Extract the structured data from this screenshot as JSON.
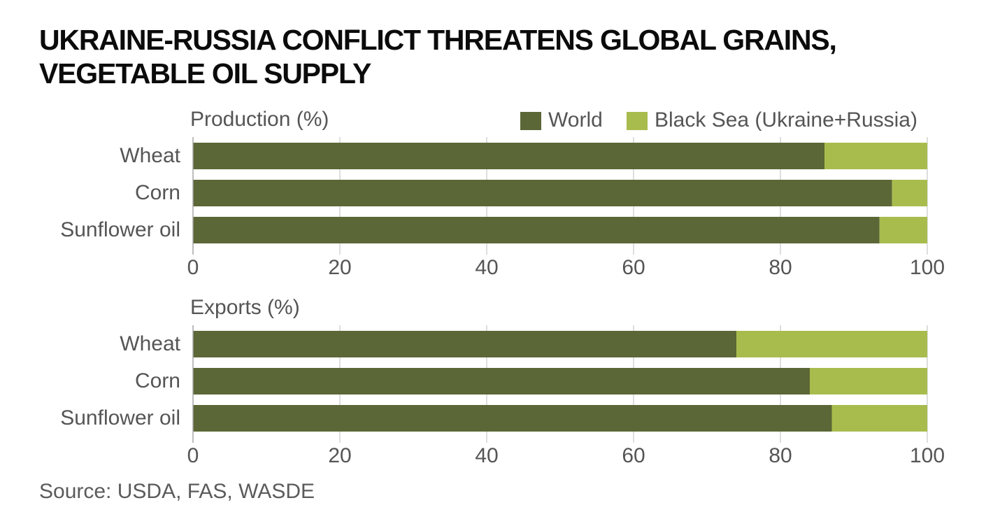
{
  "header": {
    "title": "UKRAINE-RUSSIA CONFLICT THREATENS GLOBAL GRAINS,\nVEGETABLE OIL SUPPLY"
  },
  "footer": {
    "source": "Source: USDA, FAS, WASDE"
  },
  "colors": {
    "world": "#5b6736",
    "black_sea": "#a8bc4e",
    "text": "#555555",
    "grid": "#c7c7c7",
    "title": "#0b0b0b"
  },
  "chart_data": [
    {
      "type": "bar",
      "orientation": "horizontal",
      "stacked": true,
      "title": "Production (%)",
      "categories": [
        "Wheat",
        "Corn",
        "Sunflower oil"
      ],
      "series": [
        {
          "name": "World",
          "values": [
            86,
            95.2,
            93.5
          ]
        },
        {
          "name": "Black Sea (Ukraine+Russia)",
          "values": [
            14,
            4.8,
            6.5
          ]
        }
      ],
      "xlim": [
        0,
        100
      ],
      "xticks": [
        0,
        20,
        40,
        60,
        80,
        100
      ],
      "grid": true,
      "legend": "top-right"
    },
    {
      "type": "bar",
      "orientation": "horizontal",
      "stacked": true,
      "title": "Exports (%)",
      "categories": [
        "Wheat",
        "Corn",
        "Sunflower oil"
      ],
      "series": [
        {
          "name": "World",
          "values": [
            74,
            84,
            87
          ]
        },
        {
          "name": "Black Sea (Ukraine+Russia)",
          "values": [
            26,
            16,
            13
          ]
        }
      ],
      "xlim": [
        0,
        100
      ],
      "xticks": [
        0,
        20,
        40,
        60,
        80,
        100
      ],
      "grid": true,
      "legend": "none"
    }
  ]
}
